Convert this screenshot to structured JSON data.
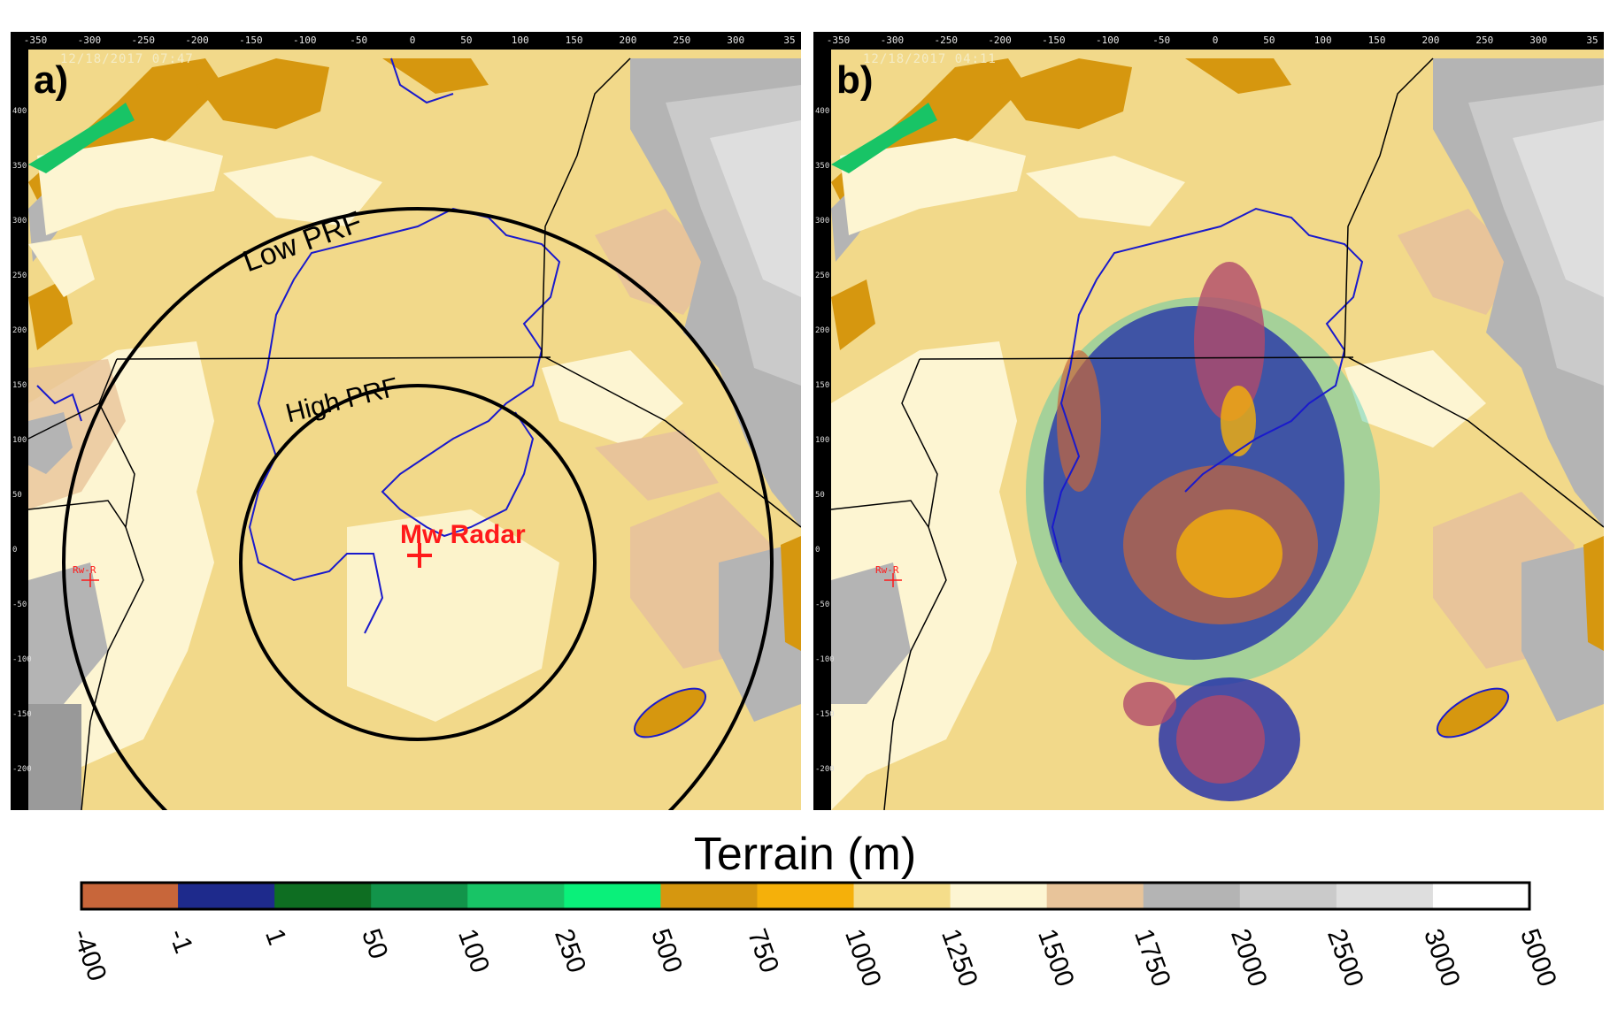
{
  "panels": [
    {
      "label": "a)",
      "stamp": "12/18/2017 07:47",
      "annotations": {
        "low_prf": "Low PRF",
        "high_prf": "High PRF",
        "radar": "Mw Radar",
        "site": "Rw-R"
      }
    },
    {
      "label": "b)",
      "stamp": "12/18/2017 04:11",
      "annotations": {
        "site": "Rw-R"
      }
    }
  ],
  "top_axis_ticks": [
    "-350",
    "-300",
    "-250",
    "-200",
    "-150",
    "-100",
    "-50",
    "0",
    "50",
    "100",
    "150",
    "200",
    "250",
    "300",
    "35"
  ],
  "left_axis_ticks": [
    "400",
    "350",
    "300",
    "250",
    "200",
    "150",
    "100",
    "50",
    "0",
    "-50",
    "-100",
    "-150",
    "-200"
  ],
  "colorbar": {
    "title": "Terrain (m)",
    "ticks": [
      "-400",
      "-1",
      "1",
      "50",
      "100",
      "250",
      "500",
      "750",
      "1000",
      "1250",
      "1500",
      "1750",
      "2000",
      "2500",
      "3000",
      "5000"
    ],
    "colors": [
      "#c8663a",
      "#1e2a8c",
      "#0e6e22",
      "#12944a",
      "#18c466",
      "#0af07a",
      "#d6970f",
      "#f5b00a",
      "#f5dd8a",
      "#fdf5d2",
      "#e8c49a",
      "#b4b4b4",
      "#cacaca",
      "#dedede",
      "#ffffff"
    ]
  }
}
